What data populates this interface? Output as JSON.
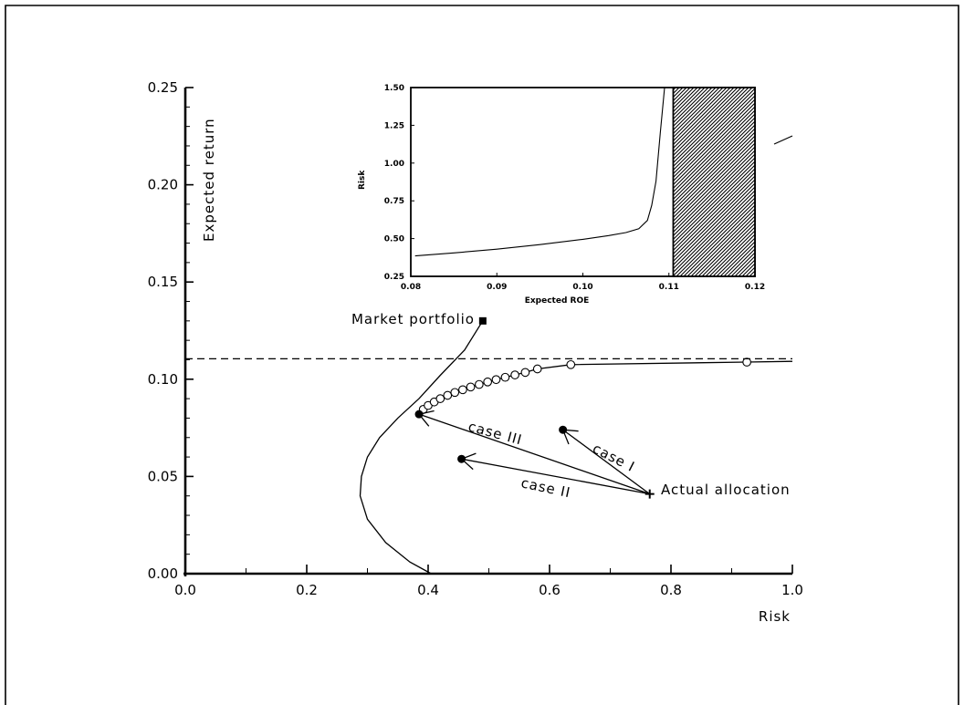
{
  "colors": {
    "ink": "#000000",
    "paper": "#ffffff"
  },
  "chart_data": [
    {
      "type": "line",
      "title": "",
      "xlabel": "Risk",
      "ylabel": "Expected return",
      "xlim": [
        0,
        1.0
      ],
      "ylim": [
        0,
        0.25
      ],
      "xticks": [
        "0.0",
        "0.2",
        "0.4",
        "0.6",
        "0.8",
        "1.0"
      ],
      "yticks": [
        "0.00",
        "0.05",
        "0.10",
        "0.15",
        "0.20",
        "0.25"
      ],
      "grid": false,
      "series": [
        {
          "style": "solid",
          "x": [
            0.405,
            0.37,
            0.33,
            0.3,
            0.288,
            0.29,
            0.3,
            0.32,
            0.35,
            0.385,
            0.42,
            0.46,
            0.49
          ],
          "y": [
            0.0,
            0.006,
            0.016,
            0.028,
            0.04,
            0.05,
            0.06,
            0.07,
            0.08,
            0.09,
            0.102,
            0.115,
            0.13
          ]
        },
        {
          "style": "solid-with-circles",
          "x": [
            0.385,
            0.392,
            0.4,
            0.41,
            0.42,
            0.432,
            0.444,
            0.457,
            0.47,
            0.484,
            0.498,
            0.512,
            0.527,
            0.543,
            0.56,
            0.58,
            0.635,
            0.925,
            1.0
          ],
          "y": [
            0.082,
            0.0845,
            0.0865,
            0.0883,
            0.09,
            0.0917,
            0.0932,
            0.0946,
            0.096,
            0.0973,
            0.0986,
            0.0998,
            0.101,
            0.1022,
            0.1035,
            0.1053,
            0.1075,
            0.1088,
            0.1092
          ]
        },
        {
          "style": "dashed",
          "x": [
            0.0,
            1.0
          ],
          "y": [
            0.1105,
            0.1105
          ]
        }
      ],
      "points": [
        {
          "label": "Market portfolio",
          "marker": "square",
          "x": 0.49,
          "y": 0.13
        },
        {
          "label": "Actual allocation",
          "marker": "plus",
          "x": 0.765,
          "y": 0.041
        },
        {
          "label": "",
          "marker": "dot",
          "x": 0.385,
          "y": 0.082
        },
        {
          "label": "",
          "marker": "dot",
          "x": 0.455,
          "y": 0.059
        },
        {
          "label": "",
          "marker": "dot",
          "x": 0.622,
          "y": 0.074
        }
      ],
      "arrows": [
        {
          "label": "case I",
          "from": [
            0.765,
            0.041
          ],
          "to": [
            0.622,
            0.074
          ]
        },
        {
          "label": "case II",
          "from": [
            0.765,
            0.041
          ],
          "to": [
            0.455,
            0.059
          ]
        },
        {
          "label": "case III",
          "from": [
            0.765,
            0.041
          ],
          "to": [
            0.385,
            0.082
          ]
        }
      ]
    },
    {
      "type": "line",
      "title": "",
      "xlabel": "Expected ROE",
      "ylabel": "Risk",
      "xlim": [
        0.08,
        0.12
      ],
      "ylim": [
        0.25,
        1.5
      ],
      "xticks": [
        "0.08",
        "0.09",
        "0.10",
        "0.11",
        "0.12"
      ],
      "yticks": [
        "0.25",
        "0.50",
        "0.75",
        "1.00",
        "1.25",
        "1.50"
      ],
      "grid": false,
      "series": [
        {
          "style": "solid",
          "x": [
            0.0805,
            0.085,
            0.09,
            0.095,
            0.1,
            0.103,
            0.105,
            0.1065,
            0.1075,
            0.108,
            0.1085,
            0.109,
            0.1095
          ],
          "y": [
            0.385,
            0.405,
            0.43,
            0.46,
            0.495,
            0.52,
            0.54,
            0.565,
            0.62,
            0.72,
            0.88,
            1.2,
            1.5
          ]
        }
      ],
      "hatched_region": {
        "x": [
          0.1105,
          0.12
        ]
      }
    }
  ]
}
